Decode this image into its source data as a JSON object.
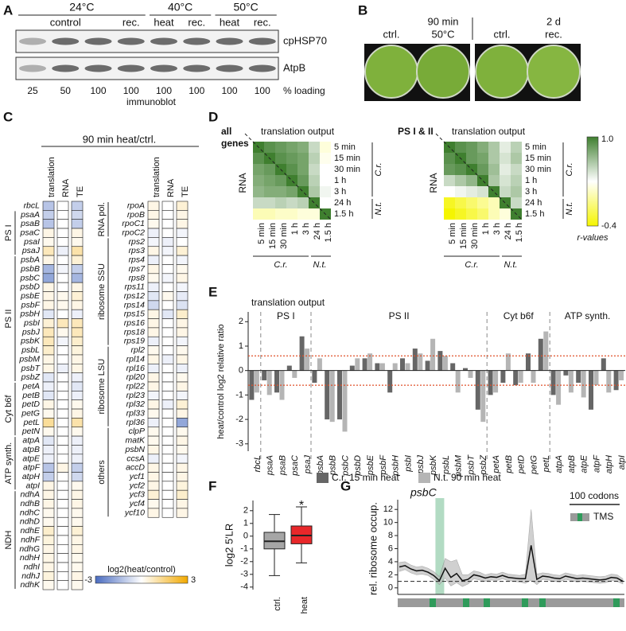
{
  "panel_labels": [
    "A",
    "B",
    "C",
    "D",
    "E",
    "F",
    "G"
  ],
  "blot": {
    "temperatures": [
      "24°C",
      "40°C",
      "50°C"
    ],
    "conditions": [
      "control",
      "rec.",
      "heat",
      "rec.",
      "heat",
      "rec."
    ],
    "proteins": [
      "cpHSP70",
      "AtpB"
    ],
    "loading": [
      25,
      50,
      100,
      100,
      100,
      100,
      100,
      100
    ],
    "loading_unit": "% loading",
    "method": "immunoblot"
  },
  "photos": {
    "labels": [
      "ctrl.",
      "90 min",
      "50°C",
      "ctrl.",
      "2 d",
      "rec."
    ]
  },
  "heatmap": {
    "title": "90 min heat/ctrl.",
    "columns": [
      "translation",
      "RNA",
      "TE"
    ],
    "left": [
      {
        "genes": [
          "rbcL"
        ],
        "values": [
          [
            -1.2,
            0,
            -1.0
          ]
        ]
      },
      {
        "group": "PS I",
        "genes": [
          "psaA",
          "psaB",
          "psaC",
          "psaI",
          "psaJ"
        ],
        "values": [
          [
            -1.0,
            0,
            -0.8
          ],
          [
            -1.2,
            0,
            -1.0
          ],
          [
            0.3,
            0,
            0.3
          ],
          [
            0.2,
            0,
            0.2
          ],
          [
            0.8,
            -0.3,
            1.0
          ]
        ]
      },
      {
        "group": "PS II",
        "genes": [
          "psbA",
          "psbB",
          "psbC",
          "psbD",
          "psbE",
          "psbF",
          "psbH",
          "psbI",
          "psbJ",
          "psbK",
          "psbL",
          "psbM",
          "psbT",
          "psbZ"
        ],
        "values": [
          [
            0.3,
            0,
            0.5
          ],
          [
            -1.5,
            -0.2,
            -1.0
          ],
          [
            -1.8,
            0,
            -1.5
          ],
          [
            0.3,
            0,
            0.3
          ],
          [
            0.3,
            0.2,
            0.5
          ],
          [
            0.3,
            0.2,
            0.3
          ],
          [
            -0.5,
            0,
            -0.3
          ],
          [
            0.5,
            0.8,
            0.8
          ],
          [
            0.8,
            0.2,
            0.8
          ],
          [
            0.8,
            -0.2,
            0.6
          ],
          [
            0.6,
            0,
            0.4
          ],
          [
            0.3,
            0,
            0.3
          ],
          [
            0.3,
            -0.3,
            0.3
          ],
          [
            -0.5,
            0,
            -0.3
          ]
        ]
      },
      {
        "group": "Cyt b6f",
        "genes": [
          "petA",
          "petB",
          "petD",
          "petG",
          "petL",
          "petN"
        ],
        "values": [
          [
            -0.3,
            0,
            -0.5
          ],
          [
            -0.5,
            0,
            -0.3
          ],
          [
            0.3,
            0,
            0.2
          ],
          [
            0.2,
            0,
            0.3
          ],
          [
            1.2,
            0,
            1.0
          ],
          [
            0.2,
            0,
            0.2
          ]
        ]
      },
      {
        "group": "ATP synth.",
        "genes": [
          "atpA",
          "atpB",
          "atpE",
          "atpF",
          "atpH",
          "atpI"
        ],
        "values": [
          [
            -0.5,
            0,
            -0.3
          ],
          [
            -0.3,
            0,
            -0.3
          ],
          [
            -0.3,
            0,
            -0.3
          ],
          [
            -1.2,
            0.3,
            -1.0
          ],
          [
            -1.0,
            0,
            -0.8
          ],
          [
            0.3,
            0,
            0.2
          ]
        ]
      },
      {
        "group": "NDH",
        "genes": [
          "ndhA",
          "ndhB",
          "ndhC",
          "ndhD",
          "ndhE",
          "ndhF",
          "ndhG",
          "ndhH",
          "ndhI",
          "ndhJ",
          "ndhK"
        ],
        "values": [
          [
            0.3,
            0,
            0.3
          ],
          [
            0.3,
            0,
            0.3
          ],
          [
            0.2,
            0,
            0.2
          ],
          [
            0.2,
            0,
            0.2
          ],
          [
            0.6,
            0,
            0.5
          ],
          [
            0.4,
            0,
            0.3
          ],
          [
            0.3,
            0,
            0.3
          ],
          [
            0.3,
            0,
            0.2
          ],
          [
            0.3,
            0,
            0.2
          ],
          [
            0.4,
            0,
            0.3
          ],
          [
            0.2,
            0,
            0.2
          ]
        ]
      }
    ],
    "right": [
      {
        "group": "RNA pol.",
        "genes": [
          "rpoA",
          "rpoB",
          "rpoC1",
          "rpoC2"
        ],
        "values": [
          [
            0.3,
            0,
            0.5
          ],
          [
            0.3,
            0,
            0.3
          ],
          [
            0.2,
            0,
            0.3
          ],
          [
            -0.3,
            0,
            -0.2
          ]
        ]
      },
      {
        "group": "ribosome SSU",
        "genes": [
          "rps2",
          "rps3",
          "rps4",
          "rps7",
          "rps8",
          "rps11",
          "rps12",
          "rps14",
          "rps15",
          "rps16",
          "rps18",
          "rps19"
        ],
        "values": [
          [
            -0.2,
            -0.3,
            0
          ],
          [
            0.3,
            -0.2,
            0.5
          ],
          [
            -0.3,
            0,
            -0.2
          ],
          [
            0.3,
            0,
            0.2
          ],
          [
            0.2,
            -0.2,
            0.3
          ],
          [
            -0.3,
            0,
            -0.2
          ],
          [
            -0.5,
            0.2,
            -0.4
          ],
          [
            -0.8,
            0,
            -0.6
          ],
          [
            0.3,
            -0.5,
            0.6
          ],
          [
            0.3,
            0,
            0.3
          ],
          [
            0.3,
            0,
            0.3
          ],
          [
            -0.3,
            0,
            -0.2
          ]
        ]
      },
      {
        "group": "ribosome LSU",
        "genes": [
          "rpl2",
          "rpl14",
          "rpl16",
          "rpl20",
          "rpl22",
          "rpl23",
          "rpl32",
          "rpl33",
          "rpl36"
        ],
        "values": [
          [
            0.2,
            0,
            0.2
          ],
          [
            0.3,
            -0.3,
            0.3
          ],
          [
            -0.3,
            0,
            -0.3
          ],
          [
            0.3,
            0,
            0.2
          ],
          [
            0.3,
            0,
            0.3
          ],
          [
            -0.2,
            0,
            -0.2
          ],
          [
            0.3,
            -0.3,
            0.5
          ],
          [
            0.2,
            0,
            0.3
          ],
          [
            -0.3,
            0,
            -1.8
          ]
        ]
      },
      {
        "group": "others",
        "genes": [
          "clpP",
          "matK",
          "psbN",
          "ccsA",
          "accD",
          "ycf1",
          "ycf2",
          "ycf3",
          "ycf4",
          "ycf10"
        ],
        "values": [
          [
            0.2,
            0,
            0.2
          ],
          [
            0.2,
            0,
            0.3
          ],
          [
            0.3,
            0,
            0.2
          ],
          [
            -0.3,
            0,
            -0.2
          ],
          [
            0.3,
            0,
            0.3
          ],
          [
            0.3,
            0,
            0.3
          ],
          [
            0.3,
            0,
            0.4
          ],
          [
            0.5,
            0,
            0.6
          ],
          [
            0.2,
            0,
            0.3
          ],
          [
            0.3,
            0,
            0.3
          ]
        ]
      }
    ],
    "colorbar": {
      "label": "log2(heat/control)",
      "min": -3,
      "max": 3
    }
  },
  "correlation": {
    "header": "translation output",
    "axis_label": "RNA",
    "timepoints": [
      "5 min",
      "15 min",
      "30 min",
      "1 h",
      "3 h",
      "24 h",
      "1.5 h"
    ],
    "species": [
      "C.r.",
      "N.t."
    ],
    "matrices": [
      {
        "title": [
          "all",
          "genes"
        ],
        "values": [
          [
            1,
            0.9,
            0.85,
            0.8,
            0.75,
            0.5,
            0.2
          ],
          [
            0.9,
            1,
            0.9,
            0.85,
            0.8,
            0.55,
            0.25
          ],
          [
            0.8,
            0.85,
            1,
            0.9,
            0.8,
            0.5,
            0.3
          ],
          [
            0.75,
            0.8,
            0.85,
            1,
            0.85,
            0.55,
            0.3
          ],
          [
            0.7,
            0.75,
            0.75,
            0.8,
            1,
            0.6,
            0.35
          ],
          [
            0.5,
            0.5,
            0.55,
            0.5,
            0.55,
            1,
            0.3
          ],
          [
            0.1,
            0.1,
            0.15,
            0.15,
            0.2,
            0.2,
            1
          ]
        ]
      },
      {
        "title": [
          "PS I & II"
        ],
        "values": [
          [
            1,
            0.9,
            0.85,
            0.75,
            0.6,
            0.4,
            0.55
          ],
          [
            0.9,
            1,
            0.85,
            0.8,
            0.6,
            0.45,
            0.6
          ],
          [
            0.85,
            0.9,
            1,
            0.85,
            0.65,
            0.4,
            0.5
          ],
          [
            0.5,
            0.6,
            0.7,
            1,
            0.6,
            0.45,
            0.55
          ],
          [
            0.3,
            0.35,
            0.4,
            0.45,
            1,
            0.5,
            0.6
          ],
          [
            -0.3,
            -0.2,
            -0.1,
            0,
            0.1,
            1,
            0.5
          ],
          [
            -0.4,
            -0.3,
            -0.2,
            -0.1,
            0.1,
            0.2,
            1
          ]
        ]
      }
    ],
    "colorbar": {
      "max": {
        "value": 1,
        "label": "1.0"
      },
      "min": -0.4,
      "label": "r-values"
    }
  },
  "bar_chart": {
    "header": "translation output",
    "groups": [
      "PS I",
      "PS II",
      "Cyt b6f",
      "ATP synth."
    ],
    "ylabel": "heat/control log2 relative ratio",
    "categories": [
      "rbcL",
      "psaA",
      "psaB",
      "psaC",
      "psaJ",
      "psbA",
      "psbB",
      "psbC",
      "psbD",
      "psbE",
      "psbF",
      "psbH",
      "psbI",
      "psbJ",
      "psbK",
      "psbL",
      "psbM",
      "psbT",
      "psbZ",
      "petA",
      "petB",
      "petD",
      "petG",
      "petL",
      "atpA",
      "atpB",
      "atpE",
      "atpF",
      "atpH",
      "atpI"
    ],
    "series": [
      {
        "name": "C.r. 15 min heat",
        "color": "#666666",
        "values": [
          -1.2,
          -0.4,
          -0.9,
          0.2,
          1.4,
          -0.5,
          -2.0,
          -2.0,
          0.2,
          0.5,
          0.3,
          -0.9,
          0.5,
          0.9,
          0.4,
          0.8,
          0.3,
          0.1,
          -1.6,
          -1.0,
          -0.5,
          -0.6,
          0.7,
          1.3,
          -1.0,
          -0.2,
          -0.5,
          -1.6,
          0.5,
          -0.8
        ]
      },
      {
        "name": "N.t. 90 min heat",
        "color": "#b5b5b5",
        "values": [
          -0.9,
          -1.0,
          -1.2,
          -0.3,
          0.9,
          0.5,
          -2.1,
          -2.5,
          0.5,
          0.7,
          0.3,
          0.3,
          0.3,
          0.7,
          1.3,
          0.6,
          -0.9,
          -0.3,
          -2.1,
          -0.9,
          0.7,
          -0.5,
          -0.5,
          1.6,
          -1.4,
          -0.9,
          -1.1,
          -0.6,
          -0.9,
          -0.4
        ]
      }
    ],
    "ylim": [
      -3.3,
      2.4
    ],
    "yticks": [
      -3,
      -2,
      -1,
      0,
      1,
      2
    ],
    "thresholds": [
      0.6,
      -0.6
    ]
  },
  "boxplot": {
    "ylabel": "log2 5′LR",
    "categories": [
      "ctrl.",
      "heat"
    ],
    "significance": "*",
    "boxes": [
      {
        "whislo": -3.1,
        "q1": -1.0,
        "med": -0.4,
        "q3": 0.3,
        "whishi": 1.7,
        "color": "#a6a6a6"
      },
      {
        "whislo": -2.1,
        "q1": -0.6,
        "med": 0.05,
        "q3": 0.8,
        "whishi": 2.3,
        "color": "#e8272a"
      }
    ],
    "ylim": [
      -4.2,
      2.8
    ],
    "yticks": [
      -4,
      -3,
      -2,
      -1,
      0,
      1,
      2
    ]
  },
  "profile": {
    "title": "psbC",
    "ylabel": "rel. ribosome occup.",
    "scale_bar": "100 codons",
    "legend": "TMS",
    "values": [
      3.2,
      3.4,
      2.9,
      2.6,
      2.7,
      2.4,
      1.9,
      1.1,
      3.0,
      1.6,
      2.2,
      1.1,
      1.3,
      2.0,
      1.8,
      1.5,
      1.7,
      1.6,
      1.9,
      1.6,
      1.5,
      1.4,
      1.4,
      6.5,
      1.3,
      1.8,
      1.7,
      1.5,
      1.4,
      1.8,
      1.6,
      1.4,
      1.5,
      1.4,
      1.3,
      1.2,
      1.3,
      1.6,
      1.5,
      1.0
    ],
    "lower": [
      2.5,
      2.8,
      2.3,
      2.0,
      2.1,
      1.9,
      1.3,
      0.5,
      1.5,
      0.3,
      0.8,
      0.2,
      0.6,
      1.4,
      1.2,
      1.0,
      1.2,
      1.1,
      1.4,
      1.1,
      1.0,
      0.9,
      0.7,
      1.2,
      0.5,
      1.3,
      1.2,
      1.0,
      0.9,
      1.3,
      1.1,
      0.9,
      1.0,
      0.9,
      0.8,
      0.7,
      0.8,
      1.1,
      1.0,
      0.6
    ],
    "upper": [
      3.9,
      4.0,
      3.5,
      3.2,
      3.3,
      3.0,
      2.5,
      1.7,
      4.5,
      4.0,
      4.3,
      2.0,
      2.0,
      2.6,
      2.4,
      2.0,
      2.2,
      2.1,
      2.4,
      2.1,
      2.0,
      1.9,
      2.1,
      12.0,
      2.1,
      2.3,
      2.2,
      2.0,
      1.9,
      2.3,
      2.1,
      1.9,
      2.0,
      1.9,
      1.8,
      1.7,
      1.8,
      2.1,
      2.0,
      1.4
    ],
    "baseline": 1,
    "ylim": [
      -1,
      13
    ],
    "yticks": [
      0,
      2,
      4,
      6,
      8,
      10,
      12
    ]
  }
}
